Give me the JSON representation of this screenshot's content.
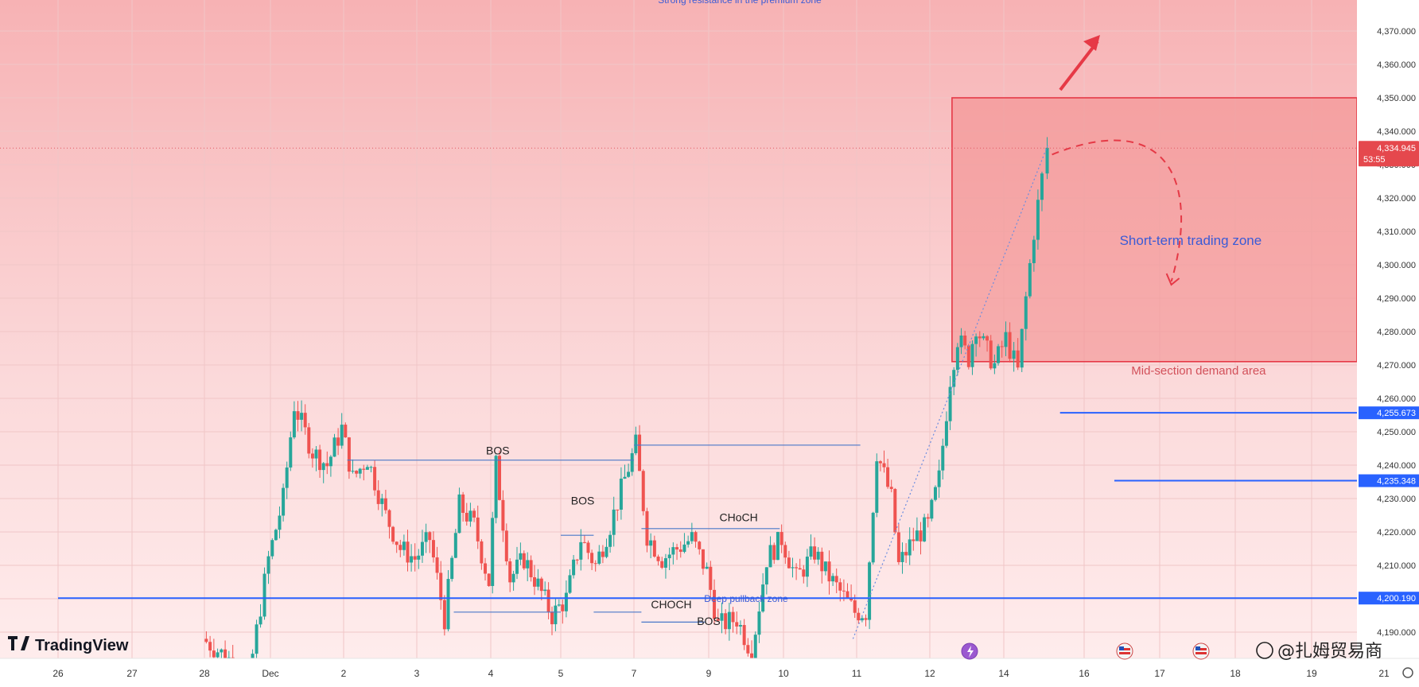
{
  "chart_data": {
    "type": "candlestick",
    "title": "",
    "xlabel": "",
    "ylabel": "",
    "ylim": [
      4168,
      4380
    ],
    "y_ticks": [
      "4,190.000",
      "4,200.000",
      "4,210.000",
      "4,220.000",
      "4,230.000",
      "4,240.000",
      "4,250.000",
      "4,260.000",
      "4,270.000",
      "4,280.000",
      "4,290.000",
      "4,300.000",
      "4,310.000",
      "4,320.000",
      "4,330.000",
      "4,340.000",
      "4,350.000",
      "4,360.000",
      "4,370.000"
    ],
    "y_tick_values": [
      4190,
      4200,
      4210,
      4220,
      4230,
      4240,
      4250,
      4260,
      4270,
      4280,
      4290,
      4300,
      4310,
      4320,
      4330,
      4340,
      4350,
      4360,
      4370
    ],
    "x_ticks": [
      {
        "label": "26",
        "day": 0
      },
      {
        "label": "27",
        "day": 1
      },
      {
        "label": "28",
        "day": 2
      },
      {
        "label": "Dec",
        "day": 3
      },
      {
        "label": "2",
        "day": 4
      },
      {
        "label": "3",
        "day": 5
      },
      {
        "label": "4",
        "day": 6
      },
      {
        "label": "5",
        "day": 7
      },
      {
        "label": "7",
        "day": 8
      },
      {
        "label": "9",
        "day": 9
      },
      {
        "label": "10",
        "day": 10
      },
      {
        "label": "11",
        "day": 11
      },
      {
        "label": "12",
        "day": 12
      },
      {
        "label": "14",
        "day": 13
      },
      {
        "label": "16",
        "day": 14
      },
      {
        "label": "17",
        "day": 15
      },
      {
        "label": "18",
        "day": 16
      },
      {
        "label": "19",
        "day": 17
      },
      {
        "label": "21",
        "day": 18
      }
    ],
    "current_price": "4,334.945",
    "countdown": "53:55",
    "price_levels": [
      {
        "label": "4,255.673",
        "value": 4255.673,
        "start_day": 13.7
      },
      {
        "label": "4,235.348",
        "value": 4235.348,
        "start_day": 14.4
      },
      {
        "label": "4,200.190",
        "value": 4200.19,
        "start_day": 0
      }
    ],
    "zone": {
      "top": 4350,
      "bottom": 4271,
      "start_day": 12.3,
      "title": "Short-term trading zone",
      "caption": "Mid-section demand area"
    },
    "annotations": [
      {
        "text": "BOS",
        "day": 6.1,
        "y": 4242
      },
      {
        "text": "BOS",
        "day": 7.3,
        "y": 4227
      },
      {
        "text": "CHoCH",
        "day": 9.4,
        "y": 4222
      },
      {
        "text": "CHOCH",
        "day": 8.5,
        "y": 4196
      },
      {
        "text": "BOS",
        "day": 9.0,
        "y": 4191
      },
      {
        "text": "Deep pullback zone",
        "day": 9.5,
        "y": 4200
      }
    ],
    "top_text": "Strong resistance in the premium zone",
    "series": [
      {
        "key_points": [
          [
            2.0,
            4188
          ],
          [
            2.4,
            4182
          ],
          [
            2.7,
            4176
          ],
          [
            3.0,
            4212
          ],
          [
            3.2,
            4230
          ],
          [
            3.35,
            4258
          ],
          [
            3.6,
            4244
          ],
          [
            3.8,
            4240
          ],
          [
            4.0,
            4251
          ],
          [
            4.15,
            4236
          ],
          [
            4.35,
            4242
          ],
          [
            4.6,
            4225
          ],
          [
            4.8,
            4215
          ],
          [
            5.0,
            4212
          ],
          [
            5.2,
            4218
          ],
          [
            5.4,
            4194
          ],
          [
            5.6,
            4228
          ],
          [
            5.8,
            4222
          ],
          [
            6.0,
            4205
          ],
          [
            6.1,
            4240
          ],
          [
            6.3,
            4206
          ],
          [
            6.5,
            4212
          ],
          [
            6.7,
            4204
          ],
          [
            6.9,
            4195
          ],
          [
            7.1,
            4200
          ],
          [
            7.3,
            4218
          ],
          [
            7.5,
            4210
          ],
          [
            7.7,
            4222
          ],
          [
            7.9,
            4236
          ],
          [
            8.05,
            4246
          ],
          [
            8.2,
            4219
          ],
          [
            8.4,
            4212
          ],
          [
            8.6,
            4215
          ],
          [
            8.8,
            4218
          ],
          [
            9.0,
            4208
          ],
          [
            9.15,
            4192
          ],
          [
            9.4,
            4194
          ],
          [
            9.6,
            4184
          ],
          [
            9.8,
            4212
          ],
          [
            10.0,
            4218
          ],
          [
            10.2,
            4206
          ],
          [
            10.45,
            4214
          ],
          [
            10.6,
            4208
          ],
          [
            10.8,
            4202
          ],
          [
            11.0,
            4196
          ],
          [
            11.15,
            4196
          ],
          [
            11.3,
            4244
          ],
          [
            11.5,
            4230
          ],
          [
            11.6,
            4210
          ],
          [
            11.8,
            4218
          ],
          [
            12.0,
            4222
          ],
          [
            12.15,
            4236
          ],
          [
            12.3,
            4266
          ],
          [
            12.4,
            4278
          ],
          [
            12.55,
            4272
          ],
          [
            12.65,
            4282
          ],
          [
            12.75,
            4276
          ],
          [
            12.9,
            4270
          ],
          [
            13.05,
            4278
          ],
          [
            13.2,
            4268
          ],
          [
            13.3,
            4290
          ],
          [
            13.4,
            4310
          ],
          [
            13.5,
            4326
          ],
          [
            13.58,
            4335
          ]
        ]
      }
    ],
    "colors": {
      "up": "#26a69a",
      "down": "#ef5350",
      "zone": "#f28b8b",
      "zone_border": "#e53946",
      "level": "#2962ff",
      "annotation_line": "#4a78c8"
    }
  },
  "watermark": {
    "logo_text": "TradingView"
  },
  "source_badge": {
    "text": "@扎姆贸易商"
  },
  "footer_icons": [
    "lightning-event-icon",
    "us-flag-event-icon",
    "us-flag-event-icon-2"
  ]
}
